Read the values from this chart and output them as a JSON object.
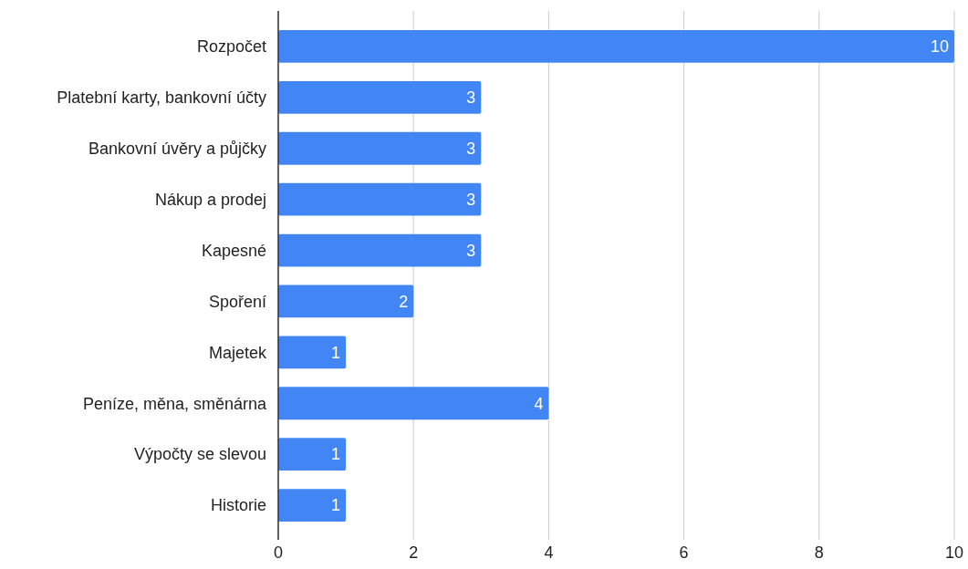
{
  "chart_data": {
    "type": "bar",
    "orientation": "horizontal",
    "categories": [
      "Rozpočet",
      "Platební karty, bankovní účty",
      "Bankovní úvěry a půjčky",
      "Nákup a prodej",
      "Kapesné",
      "Spoření",
      "Majetek",
      "Peníze, měna, směnárna",
      "Výpočty se slevou",
      "Historie"
    ],
    "values": [
      10,
      3,
      3,
      3,
      3,
      2,
      1,
      4,
      1,
      1
    ],
    "color": "#4285f4",
    "xlim": [
      0,
      10
    ],
    "xticks": [
      0,
      2,
      4,
      6,
      8,
      10
    ],
    "grid": "x",
    "data_labels": true
  }
}
